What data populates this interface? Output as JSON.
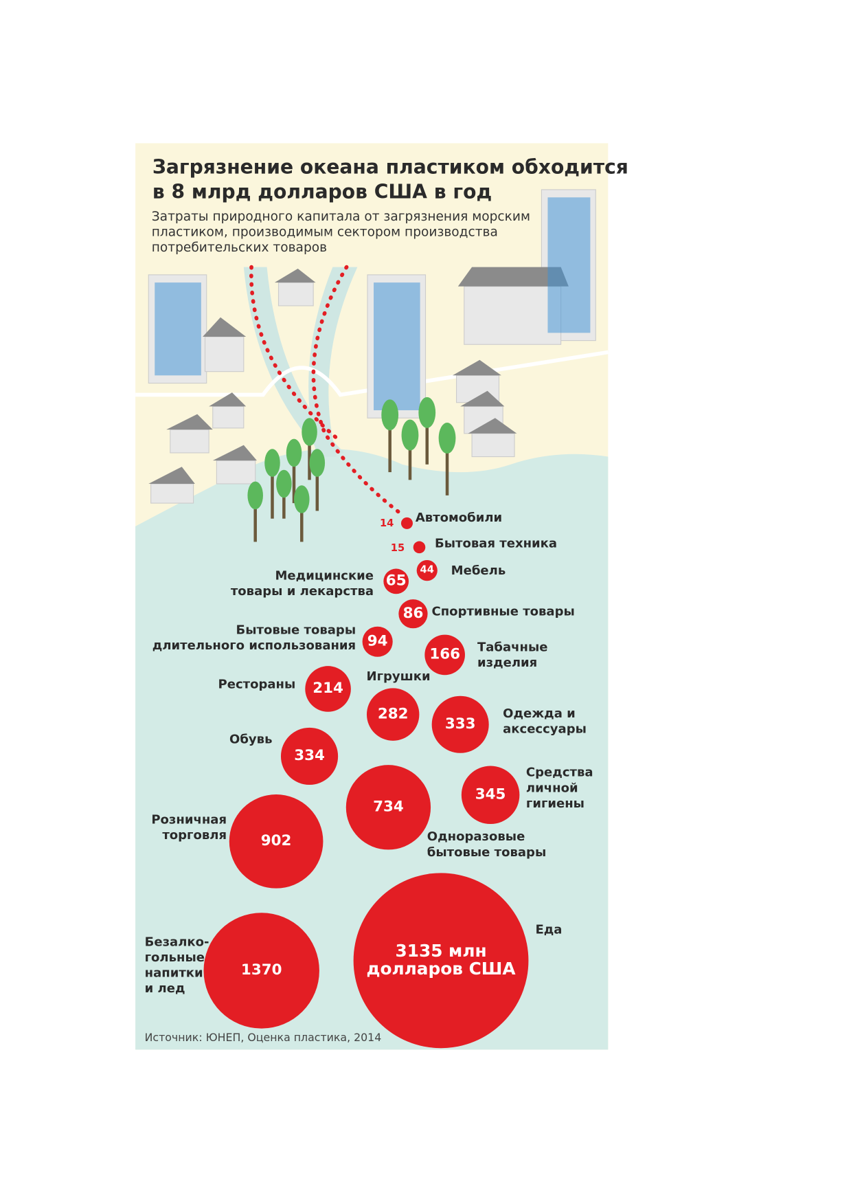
{
  "chart_data": {
    "type": "bubble",
    "title": "Загрязнение океана пластиком обходится\nв 8 млрд долларов США в год",
    "subtitle": "Затраты природного капитала от загрязнения морским\nпластиком, производимым сектором производства\nпотребительских товаров",
    "source": "Источник: ЮНЕП, Оценка пластика, 2014",
    "color": "#e31e24",
    "categories": [
      "Автомобили",
      "Бытовая техника",
      "Мебель",
      "Медицинские\nтовары и лекарства",
      "Спортивные товары",
      "Бытовые товары\nдлительного использования",
      "Табачные\nизделия",
      "Рестораны",
      "Игрушки",
      "Одежда и\nаксессуары",
      "Обувь",
      "Одноразовые\nбытовые товары",
      "Средства\nличной\nгигиены",
      "Розничная\nторговля",
      "Безалко-\nгольные\nнапитки\nи лед",
      "Еда"
    ],
    "values": [
      14,
      15,
      44,
      65,
      86,
      94,
      166,
      214,
      282,
      333,
      334,
      734,
      345,
      902,
      1370,
      3135
    ],
    "value_labels": [
      "14",
      "15",
      "44",
      "65",
      "86",
      "94",
      "166",
      "214",
      "282",
      "333",
      "334",
      "734",
      "345",
      "902",
      "1370",
      "3135 млн\nдолларов США"
    ]
  }
}
